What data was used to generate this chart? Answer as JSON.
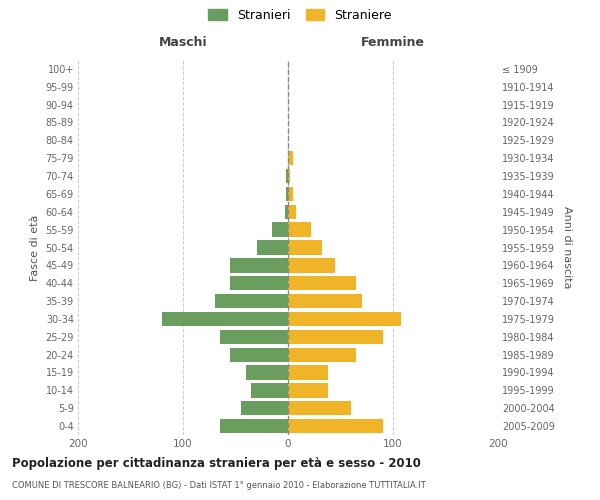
{
  "age_groups": [
    "0-4",
    "5-9",
    "10-14",
    "15-19",
    "20-24",
    "25-29",
    "30-34",
    "35-39",
    "40-44",
    "45-49",
    "50-54",
    "55-59",
    "60-64",
    "65-69",
    "70-74",
    "75-79",
    "80-84",
    "85-89",
    "90-94",
    "95-99",
    "100+"
  ],
  "birth_years": [
    "2005-2009",
    "2000-2004",
    "1995-1999",
    "1990-1994",
    "1985-1989",
    "1980-1984",
    "1975-1979",
    "1970-1974",
    "1965-1969",
    "1960-1964",
    "1955-1959",
    "1950-1954",
    "1945-1949",
    "1940-1944",
    "1935-1939",
    "1930-1934",
    "1925-1929",
    "1920-1924",
    "1915-1919",
    "1910-1914",
    "≤ 1909"
  ],
  "maschi": [
    65,
    45,
    35,
    40,
    55,
    65,
    120,
    70,
    55,
    55,
    30,
    15,
    3,
    2,
    2,
    0,
    0,
    0,
    0,
    0,
    0
  ],
  "femmine": [
    90,
    60,
    38,
    38,
    65,
    90,
    108,
    70,
    65,
    45,
    32,
    22,
    8,
    5,
    2,
    5,
    0,
    0,
    0,
    0,
    0
  ],
  "maschi_color": "#6a9e5e",
  "femmine_color": "#f0b429",
  "background_color": "#ffffff",
  "grid_color": "#cccccc",
  "title": "Popolazione per cittadinanza straniera per età e sesso - 2010",
  "subtitle": "COMUNE DI TRESCORE BALNEARIO (BG) - Dati ISTAT 1° gennaio 2010 - Elaborazione TUTTITALIA.IT",
  "legend_maschi": "Stranieri",
  "legend_femmine": "Straniere",
  "xlabel_left": "Maschi",
  "xlabel_right": "Femmine",
  "ylabel_left": "Fasce di età",
  "ylabel_right": "Anni di nascita",
  "xlim": 200,
  "bar_height": 0.8
}
